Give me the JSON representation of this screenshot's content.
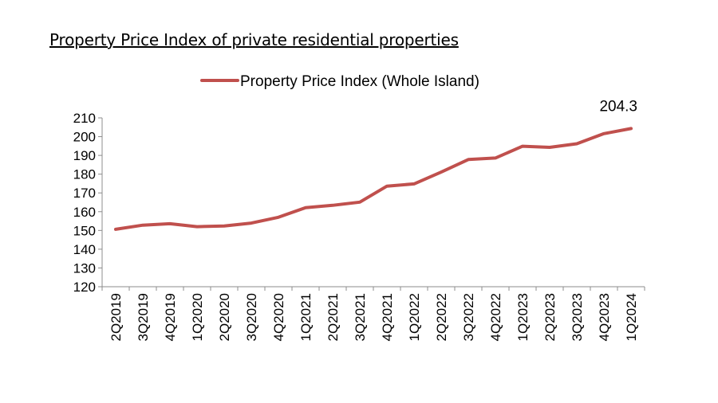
{
  "page": {
    "title": "Property Price Index of private residential properties"
  },
  "chart_data": {
    "type": "line",
    "title": "",
    "xlabel": "",
    "ylabel": "",
    "ylim": [
      120,
      210
    ],
    "yticks": [
      120,
      130,
      140,
      150,
      160,
      170,
      180,
      190,
      200,
      210
    ],
    "grid": false,
    "legend_position": "top-center",
    "categories": [
      "2Q2019",
      "3Q2019",
      "4Q2019",
      "1Q2020",
      "2Q2020",
      "3Q2020",
      "4Q2020",
      "1Q2021",
      "2Q2021",
      "3Q2021",
      "4Q2021",
      "1Q2022",
      "2Q2022",
      "3Q2022",
      "4Q2022",
      "1Q2023",
      "2Q2023",
      "3Q2023",
      "4Q2023",
      "1Q2024"
    ],
    "series": [
      {
        "name": "Property Price Index (Whole Island)",
        "color": "#c0504d",
        "values": [
          150.6,
          152.8,
          153.6,
          152.0,
          152.4,
          153.9,
          157.0,
          162.1,
          163.4,
          165.1,
          173.6,
          174.8,
          181.1,
          187.8,
          188.6,
          194.9,
          194.3,
          196.2,
          201.6,
          204.3
        ]
      }
    ],
    "annotations": [
      {
        "category": "1Q2024",
        "text": "204.3"
      }
    ]
  }
}
